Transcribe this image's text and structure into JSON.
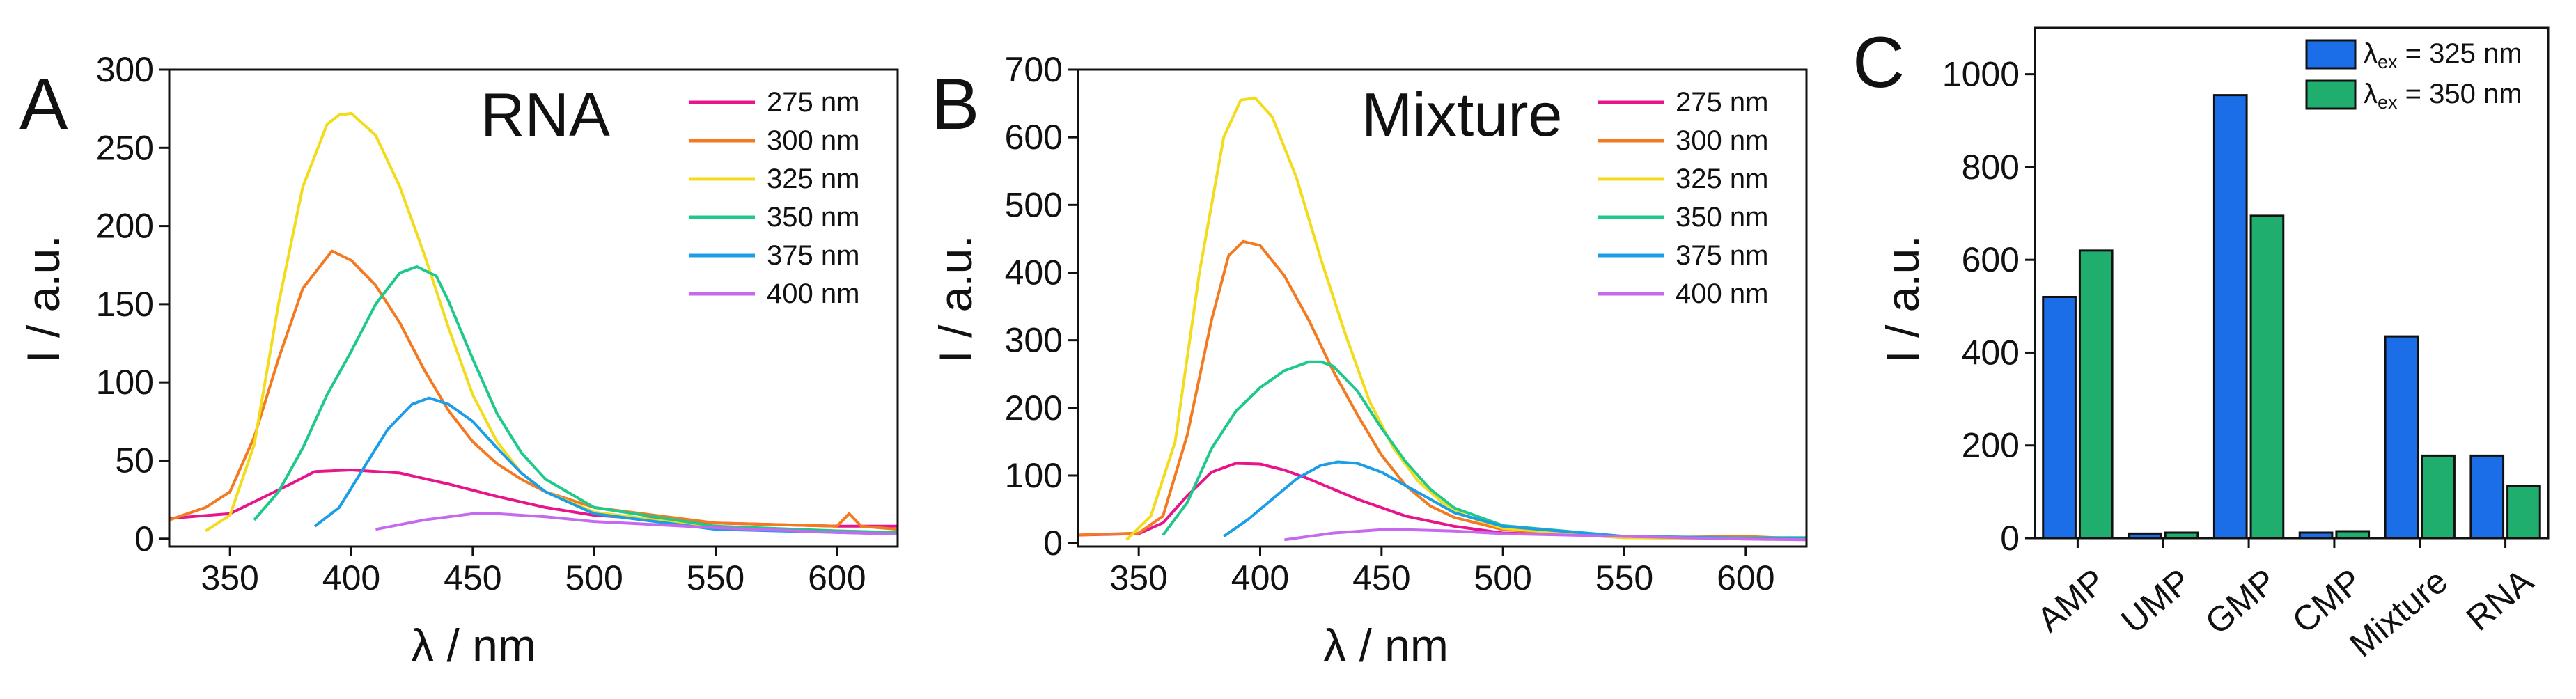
{
  "chart_data": [
    {
      "panel": "A",
      "type": "line",
      "title": "RNA",
      "xlabel": "λ / nm",
      "ylabel": "I / a.u.",
      "xlim": [
        325,
        625
      ],
      "ylim": [
        -5,
        300
      ],
      "xticks": [
        350,
        400,
        450,
        500,
        550,
        600
      ],
      "yticks": [
        0,
        50,
        100,
        150,
        200,
        250,
        300
      ],
      "legend": "top-right",
      "series": [
        {
          "name": "275 nm",
          "color": "#e8148c",
          "x": [
            325,
            350,
            375,
            385,
            400,
            420,
            440,
            460,
            480,
            500,
            550,
            600,
            625
          ],
          "y": [
            13,
            16,
            35,
            43,
            44,
            42,
            35,
            27,
            20,
            15,
            10,
            8,
            8
          ]
        },
        {
          "name": "300 nm",
          "color": "#f37a20",
          "x": [
            325,
            340,
            350,
            360,
            370,
            380,
            392,
            400,
            410,
            420,
            430,
            440,
            450,
            460,
            470,
            480,
            500,
            550,
            600,
            605,
            610,
            625
          ],
          "y": [
            12,
            20,
            30,
            65,
            115,
            160,
            184,
            178,
            162,
            138,
            108,
            82,
            62,
            48,
            38,
            30,
            20,
            10,
            8,
            16,
            8,
            6
          ]
        },
        {
          "name": "325 nm",
          "color": "#f2dc1b",
          "x": [
            340,
            350,
            360,
            370,
            380,
            390,
            395,
            400,
            405,
            410,
            420,
            430,
            440,
            450,
            460,
            470,
            480,
            500,
            550,
            600,
            625
          ],
          "y": [
            5,
            15,
            60,
            150,
            225,
            265,
            271,
            272,
            265,
            258,
            225,
            182,
            135,
            92,
            62,
            42,
            30,
            17,
            7,
            5,
            4
          ]
        },
        {
          "name": "350 nm",
          "color": "#1ec98a",
          "x": [
            360,
            370,
            380,
            390,
            400,
            410,
            420,
            427,
            435,
            440,
            450,
            460,
            470,
            480,
            500,
            550,
            600,
            625
          ],
          "y": [
            12,
            30,
            58,
            92,
            120,
            150,
            170,
            174,
            168,
            152,
            115,
            80,
            55,
            38,
            20,
            8,
            5,
            4
          ]
        },
        {
          "name": "375 nm",
          "color": "#1b9ee6",
          "x": [
            385,
            395,
            405,
            415,
            425,
            432,
            440,
            450,
            460,
            470,
            480,
            500,
            550,
            600,
            625
          ],
          "y": [
            8,
            20,
            45,
            70,
            86,
            90,
            86,
            75,
            58,
            42,
            30,
            16,
            6,
            4,
            3
          ]
        },
        {
          "name": "400 nm",
          "color": "#c569ef",
          "x": [
            410,
            430,
            450,
            460,
            480,
            500,
            550,
            600,
            625
          ],
          "y": [
            6,
            12,
            16,
            16,
            14,
            11,
            7,
            4,
            3
          ]
        }
      ]
    },
    {
      "panel": "B",
      "type": "line",
      "title": "Mixture",
      "xlabel": "λ / nm",
      "ylabel": "I / a.u.",
      "xlim": [
        325,
        625
      ],
      "ylim": [
        -5,
        700
      ],
      "xticks": [
        350,
        400,
        450,
        500,
        550,
        600
      ],
      "yticks": [
        0,
        100,
        200,
        300,
        400,
        500,
        600,
        700
      ],
      "legend": "top-right",
      "series": [
        {
          "name": "275 nm",
          "color": "#e8148c",
          "x": [
            325,
            350,
            360,
            370,
            380,
            390,
            400,
            410,
            420,
            440,
            460,
            480,
            500,
            550,
            600,
            625
          ],
          "y": [
            12,
            14,
            30,
            70,
            105,
            118,
            117,
            108,
            95,
            65,
            40,
            25,
            15,
            10,
            8,
            8
          ]
        },
        {
          "name": "300 nm",
          "color": "#f37a20",
          "x": [
            325,
            350,
            360,
            370,
            380,
            387,
            393,
            400,
            410,
            420,
            430,
            440,
            450,
            460,
            470,
            480,
            500,
            550,
            600,
            625
          ],
          "y": [
            12,
            15,
            40,
            160,
            330,
            425,
            446,
            440,
            395,
            330,
            255,
            190,
            130,
            85,
            55,
            38,
            20,
            8,
            10,
            6
          ]
        },
        {
          "name": "325 nm",
          "color": "#f2dc1b",
          "x": [
            345,
            355,
            365,
            375,
            385,
            392,
            398,
            405,
            415,
            425,
            435,
            445,
            455,
            465,
            475,
            485,
            500,
            550,
            600,
            625
          ],
          "y": [
            5,
            40,
            150,
            400,
            600,
            655,
            658,
            630,
            540,
            420,
            310,
            210,
            140,
            92,
            60,
            40,
            22,
            8,
            6,
            5
          ]
        },
        {
          "name": "350 nm",
          "color": "#1ec98a",
          "x": [
            360,
            370,
            380,
            390,
            400,
            410,
            420,
            425,
            430,
            440,
            450,
            460,
            470,
            480,
            500,
            550,
            600,
            625
          ],
          "y": [
            12,
            60,
            140,
            195,
            230,
            255,
            268,
            268,
            262,
            225,
            170,
            120,
            80,
            52,
            26,
            10,
            8,
            8
          ]
        },
        {
          "name": "375 nm",
          "color": "#1b9ee6",
          "x": [
            385,
            395,
            405,
            415,
            425,
            432,
            440,
            450,
            460,
            470,
            480,
            500,
            550,
            600,
            625
          ],
          "y": [
            10,
            35,
            65,
            95,
            115,
            120,
            118,
            105,
            85,
            65,
            45,
            25,
            10,
            7,
            6
          ]
        },
        {
          "name": "400 nm",
          "color": "#c569ef",
          "x": [
            410,
            430,
            450,
            460,
            480,
            500,
            550,
            600,
            625
          ],
          "y": [
            5,
            15,
            20,
            20,
            18,
            14,
            10,
            6,
            5
          ]
        }
      ]
    },
    {
      "panel": "C",
      "type": "bar",
      "xlabel": "",
      "ylabel": "I / a.u.",
      "ylim": [
        0,
        1100
      ],
      "yticks": [
        0,
        200,
        400,
        600,
        800,
        1000
      ],
      "categories": [
        "AMP",
        "UMP",
        "GMP",
        "CMP",
        "Mixture",
        "RNA"
      ],
      "legend": "top-right",
      "series": [
        {
          "name": "λex = 325 nm",
          "legend_main": "λ",
          "legend_sub": "ex",
          "legend_rest": " = 325 nm",
          "color": "#1c6ee8",
          "values": [
            520,
            10,
            955,
            12,
            435,
            178
          ]
        },
        {
          "name": "λex = 350 nm",
          "legend_main": "λ",
          "legend_sub": "ex",
          "legend_rest": " = 350 nm",
          "color": "#1fae6e",
          "values": [
            620,
            12,
            695,
            15,
            178,
            112
          ]
        }
      ]
    }
  ]
}
